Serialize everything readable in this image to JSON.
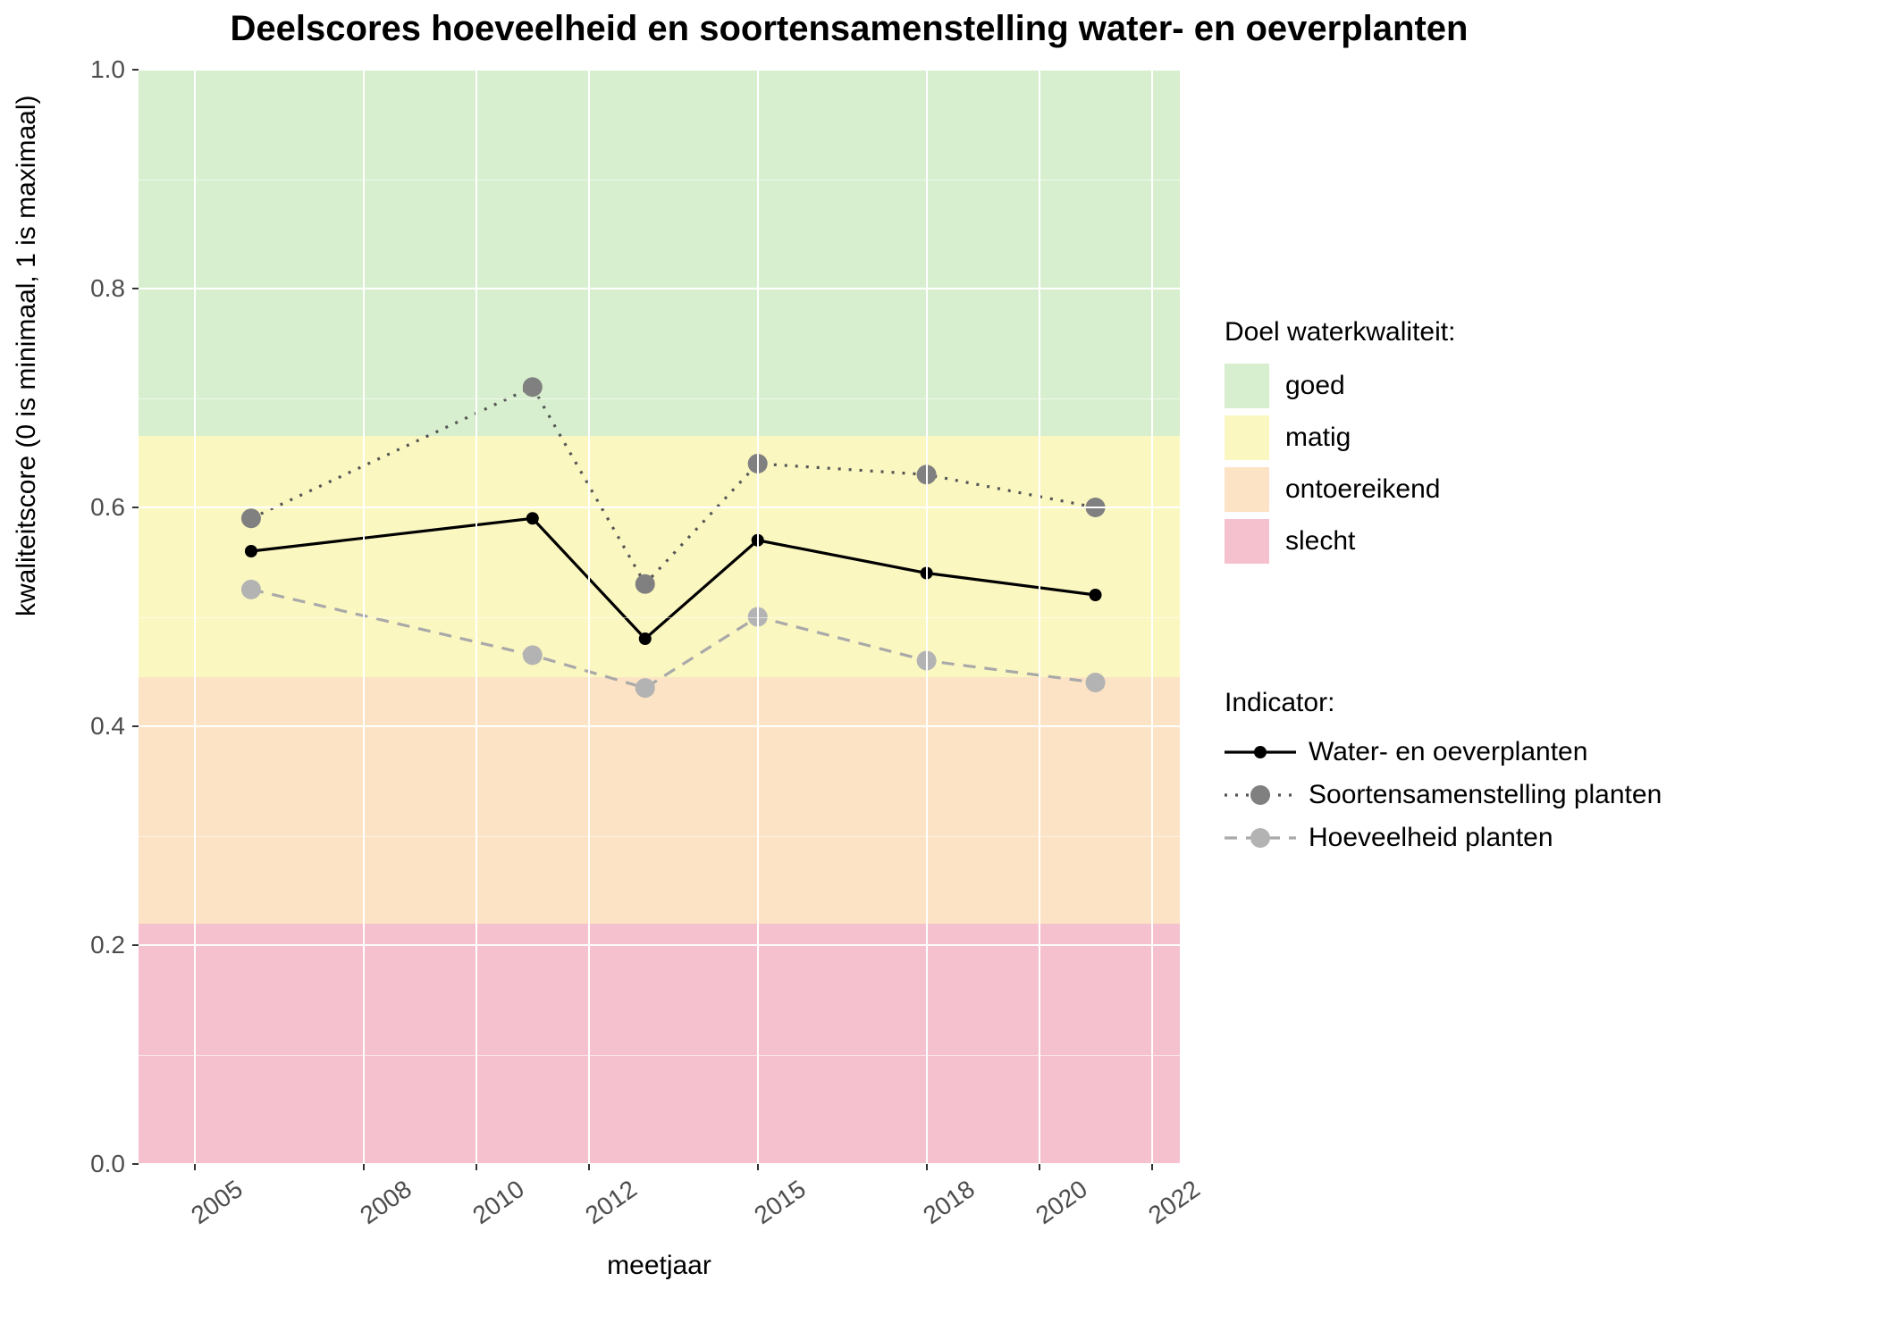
{
  "title": "Deelscores hoeveelheid en soortensamenstelling water- en oeverplanten",
  "xlabel": "meetjaar",
  "ylabel": "kwaliteitscore (0 is minimaal, 1 is maximaal)",
  "plot": {
    "type": "line",
    "panel_bg": "#ebebeb",
    "grid_color": "#ffffff",
    "xlim": [
      2004,
      2022.5
    ],
    "ylim": [
      0.0,
      1.0
    ],
    "xticks": [
      2005,
      2008,
      2010,
      2012,
      2015,
      2018,
      2020,
      2022
    ],
    "yticks": [
      0.0,
      0.2,
      0.4,
      0.6,
      0.8,
      1.0
    ],
    "yminor": [
      0.1,
      0.3,
      0.5,
      0.7,
      0.9
    ],
    "bands": [
      {
        "name": "slecht",
        "from": 0.0,
        "to": 0.22,
        "color": "#f6c1ce"
      },
      {
        "name": "ontoereikend",
        "from": 0.22,
        "to": 0.445,
        "color": "#fce3c5"
      },
      {
        "name": "matig",
        "from": 0.445,
        "to": 0.665,
        "color": "#fbf7c1"
      },
      {
        "name": "goed",
        "from": 0.665,
        "to": 1.0,
        "color": "#d7efce"
      }
    ],
    "series": [
      {
        "name": "Water- en oeverplanten",
        "color": "#000000",
        "marker_fill": "#000000",
        "marker_r": 7,
        "line_width": 3.2,
        "dash": "",
        "x": [
          2006,
          2011,
          2013,
          2015,
          2018,
          2021
        ],
        "y": [
          0.56,
          0.59,
          0.48,
          0.57,
          0.54,
          0.52
        ]
      },
      {
        "name": "Soortensamenstelling planten",
        "color": "#555555",
        "marker_fill": "#808080",
        "marker_r": 11,
        "line_width": 3.2,
        "dash": "3 9",
        "x": [
          2006,
          2011,
          2013,
          2015,
          2018,
          2021
        ],
        "y": [
          0.59,
          0.71,
          0.53,
          0.64,
          0.63,
          0.6
        ]
      },
      {
        "name": "Hoeveelheid planten",
        "color": "#a9a9a9",
        "marker_fill": "#b3b3b3",
        "marker_r": 11,
        "line_width": 3.2,
        "dash": "14 10",
        "x": [
          2006,
          2011,
          2013,
          2015,
          2018,
          2021
        ],
        "y": [
          0.525,
          0.465,
          0.435,
          0.5,
          0.46,
          0.44
        ]
      }
    ]
  },
  "legend1": {
    "title": "Doel waterkwaliteit:",
    "items": [
      {
        "label": "goed",
        "color": "#d7efce"
      },
      {
        "label": "matig",
        "color": "#fbf7c1"
      },
      {
        "label": "ontoereikend",
        "color": "#fce3c5"
      },
      {
        "label": "slecht",
        "color": "#f6c1ce"
      }
    ]
  },
  "legend2": {
    "title": "Indicator:"
  },
  "label_fontsize": 28,
  "title_fontsize": 40
}
